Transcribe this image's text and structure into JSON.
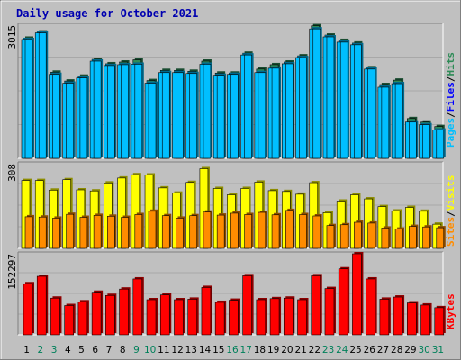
{
  "chart_data": [
    {
      "type": "bar",
      "title": "Daily usage for October 2021",
      "y_max_label": "3015",
      "ylim": [
        0,
        3015
      ],
      "categories": [
        "1",
        "2",
        "3",
        "4",
        "5",
        "6",
        "7",
        "8",
        "9",
        "10",
        "11",
        "12",
        "13",
        "14",
        "15",
        "16",
        "17",
        "18",
        "19",
        "20",
        "21",
        "22",
        "23",
        "24",
        "25",
        "26",
        "27",
        "28",
        "29",
        "30",
        "31"
      ],
      "weekend_days": [
        "2",
        "3",
        "9",
        "10",
        "16",
        "17",
        "23",
        "24",
        "30",
        "31"
      ],
      "legend": [
        "Hits",
        "Files",
        "Pages"
      ],
      "series": [
        {
          "name": "Hits",
          "color": "#2e8b57",
          "values": [
            2720,
            2860,
            1950,
            1750,
            1860,
            2240,
            2140,
            2180,
            2230,
            1760,
            1990,
            1990,
            1970,
            2200,
            1930,
            1930,
            2380,
            2020,
            2120,
            2180,
            2320,
            3000,
            2790,
            2670,
            2610,
            2050,
            1670,
            1770,
            900,
            820,
            720
          ]
        },
        {
          "name": "Files",
          "color": "#00bfff",
          "values": [
            2690,
            2840,
            1900,
            1700,
            1820,
            2200,
            2100,
            2120,
            2130,
            1700,
            1940,
            1940,
            1920,
            2130,
            1880,
            1900,
            2340,
            1940,
            2040,
            2140,
            2280,
            2930,
            2750,
            2630,
            2570,
            2020,
            1610,
            1690,
            820,
            760,
            640
          ]
        },
        {
          "name": "Pages",
          "color": "#00bfff",
          "values": [
            2690,
            2840,
            1900,
            1700,
            1820,
            2200,
            2100,
            2120,
            2130,
            1700,
            1940,
            1940,
            1920,
            2130,
            1880,
            1900,
            2340,
            1940,
            2040,
            2140,
            2280,
            2930,
            2750,
            2630,
            2570,
            2020,
            1610,
            1690,
            820,
            760,
            640
          ]
        }
      ]
    },
    {
      "type": "bar",
      "y_max_label": "308",
      "ylim": [
        0,
        308
      ],
      "legend": [
        "Visits",
        "Sites"
      ],
      "series": [
        {
          "name": "Visits",
          "color": "#ffff00",
          "values": [
            247,
            247,
            212,
            250,
            213,
            209,
            238,
            256,
            268,
            267,
            220,
            201,
            240,
            290,
            218,
            195,
            218,
            241,
            210,
            207,
            197,
            239,
            130,
            172,
            195,
            180,
            152,
            136,
            149,
            135,
            88
          ]
        },
        {
          "name": "Sites",
          "color": "#ff8c00",
          "values": [
            115,
            114,
            110,
            124,
            113,
            120,
            117,
            113,
            123,
            135,
            119,
            110,
            119,
            132,
            121,
            128,
            123,
            131,
            122,
            138,
            123,
            118,
            83,
            86,
            95,
            92,
            74,
            70,
            80,
            78,
            75
          ]
        }
      ]
    },
    {
      "type": "bar",
      "y_max_label": "152297",
      "ylim": [
        0,
        152297
      ],
      "legend": [
        "KBytes"
      ],
      "series": [
        {
          "name": "KBytes",
          "color": "#ff0000",
          "values": [
            96000,
            110000,
            69000,
            55000,
            62000,
            80000,
            74000,
            86000,
            105000,
            66000,
            75000,
            66000,
            67000,
            89000,
            61000,
            65000,
            111000,
            66000,
            68000,
            69000,
            66000,
            111000,
            87000,
            124000,
            152297,
            105000,
            67000,
            71000,
            60000,
            56000,
            51000
          ]
        }
      ]
    }
  ]
}
